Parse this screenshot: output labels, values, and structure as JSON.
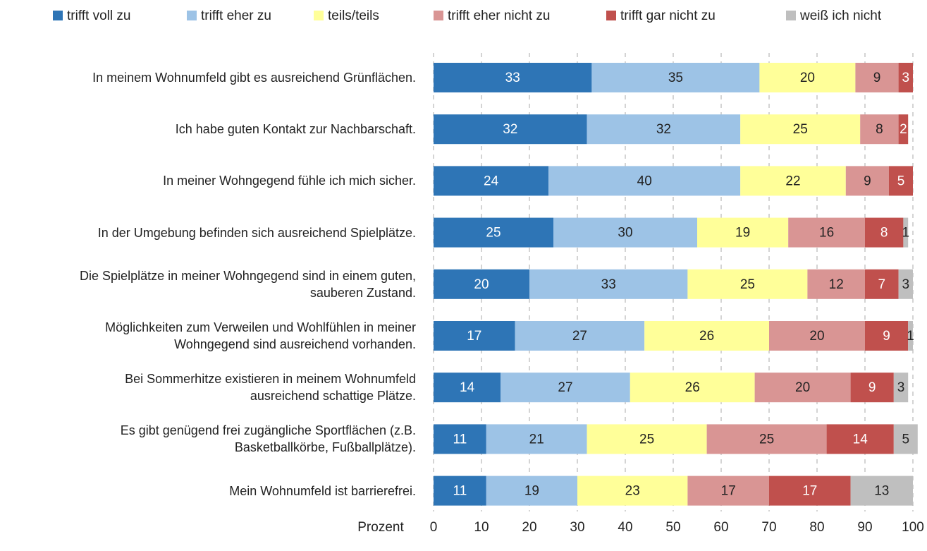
{
  "chart_data": {
    "type": "stacked-barh",
    "x_label": "Prozent",
    "categories": [
      "In meinem Wohnumfeld gibt es ausreichend Grünflächen.",
      "Ich habe guten Kontakt zur Nachbarschaft.",
      "In meiner Wohngegend fühle ich mich sicher.",
      "In der Umgebung befinden sich ausreichend Spielplätze.",
      "Die Spielplätze in meiner Wohngegend sind in einem guten,\nsauberen Zustand.",
      "Möglichkeiten zum Verweilen und Wohlfühlen in meiner\nWohngegend sind ausreichend vorhanden.",
      "Bei Sommerhitze existieren in meinem Wohnumfeld\nausreichend schattige Plätze.",
      "Es gibt genügend frei zugängliche Sportflächen (z.B.\nBasketballkörbe, Fußballplätze).",
      "Mein Wohnumfeld ist barrierefrei."
    ],
    "series": [
      {
        "name": "trifft voll zu",
        "color": "#2e75b6",
        "values": [
          33,
          32,
          24,
          25,
          20,
          17,
          14,
          11,
          11
        ]
      },
      {
        "name": "trifft eher zu",
        "color": "#9dc3e6",
        "values": [
          35,
          32,
          40,
          30,
          33,
          27,
          27,
          21,
          19
        ]
      },
      {
        "name": "teils/teils",
        "color": "#ffff99",
        "values": [
          20,
          25,
          22,
          19,
          25,
          26,
          26,
          25,
          23
        ]
      },
      {
        "name": "trifft eher nicht zu",
        "color": "#d99594",
        "values": [
          9,
          8,
          9,
          16,
          12,
          20,
          20,
          25,
          17
        ]
      },
      {
        "name": "trifft gar nicht zu",
        "color": "#c0504d",
        "values": [
          3,
          2,
          5,
          8,
          7,
          9,
          9,
          14,
          17
        ]
      },
      {
        "name": "weiß ich nicht",
        "color": "#bfbfbf",
        "values": [
          null,
          null,
          null,
          1,
          3,
          1,
          3,
          5,
          13
        ]
      }
    ],
    "xlim": [
      0,
      100
    ],
    "xticks": [
      0,
      10,
      20,
      30,
      40,
      50,
      60,
      70,
      80,
      90,
      100
    ],
    "grid": true
  }
}
